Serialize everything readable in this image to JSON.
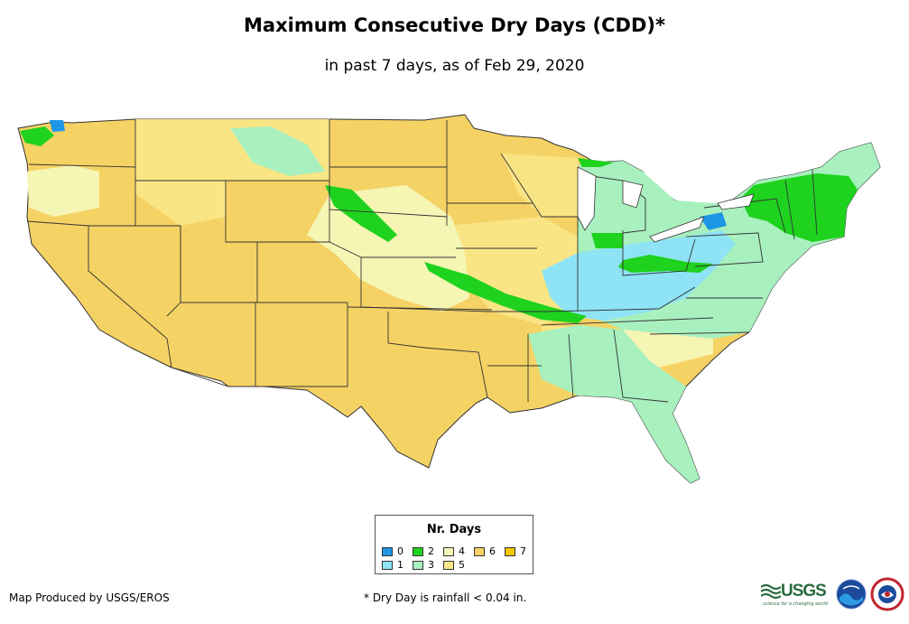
{
  "title": "Maximum Consecutive Dry Days (CDD)*",
  "subtitle": "in past 7 days, as of Feb 29, 2020",
  "legend": {
    "title": "Nr. Days",
    "items": [
      {
        "label": "0",
        "color": "#1e96e6"
      },
      {
        "label": "1",
        "color": "#8ee3f5"
      },
      {
        "label": "2",
        "color": "#1ed21e"
      },
      {
        "label": "3",
        "color": "#a8f0be"
      },
      {
        "label": "4",
        "color": "#f5f5b4"
      },
      {
        "label": "5",
        "color": "#fae687"
      },
      {
        "label": "6",
        "color": "#f5d264"
      },
      {
        "label": "7",
        "color": "#f5c800"
      }
    ]
  },
  "footer": {
    "credit": "Map Produced by USGS/EROS",
    "note": "* Dry Day is rainfall < 0.04 in."
  },
  "logos": {
    "usgs": "USGS",
    "usgs_tagline": "science for a changing world",
    "noaa": "noaa",
    "nws": "National Weather Service"
  },
  "colors": {
    "background": "#ffffff",
    "state_border": "#333333"
  }
}
